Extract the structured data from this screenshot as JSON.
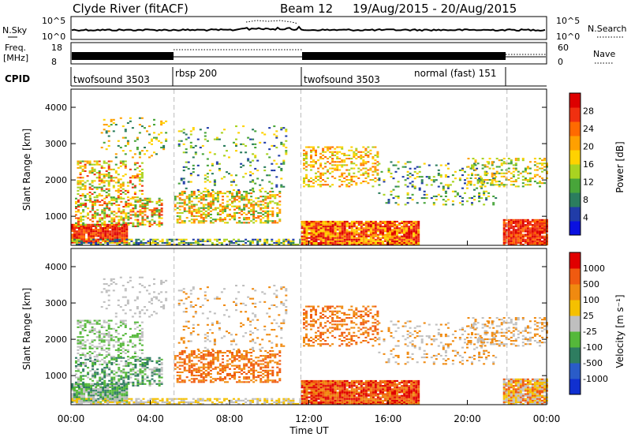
{
  "header": {
    "station": "Clyde River (fitACF)",
    "beam_label": "Beam 12",
    "dates": "19/Aug/2015 - 20/Aug/2015"
  },
  "top_panels": {
    "nsky_label": "N.Sky",
    "nsearch_label": "N.Search",
    "noise_ticks": [
      "10^5",
      "10^0"
    ],
    "freq_label_1": "Freq.",
    "freq_label_2": "[MHz]",
    "freq_ticks": [
      "18",
      "8"
    ],
    "nave_label": "Nave",
    "nave_ticks": [
      "60",
      "0"
    ],
    "cpid_label": "CPID",
    "cpid_segments": [
      {
        "name": "twofsound 3503",
        "start_h": 0,
        "end_h": 5.2
      },
      {
        "name": "rbsp 200",
        "start_h": 5.2,
        "end_h": 11.6
      },
      {
        "name": "twofsound 3503",
        "start_h": 11.6,
        "end_h": 17
      },
      {
        "name": "normal (fast) 151",
        "start_h": 17,
        "end_h": 22
      }
    ]
  },
  "time_axis": {
    "label": "Time UT",
    "ticks": [
      "00:00",
      "04:00",
      "08:00",
      "12:00",
      "16:00",
      "20:00",
      "00:00"
    ]
  },
  "chart_data": [
    {
      "type": "heatmap",
      "name": "power",
      "ylabel": "Slant Range [km]",
      "xlim_hours": [
        0,
        24
      ],
      "ylim_km": [
        200,
        4500
      ],
      "y_ticks": [
        1000,
        2000,
        3000,
        4000
      ],
      "x_ticks_hours": [
        0,
        4,
        8,
        12,
        16,
        20,
        24
      ],
      "scale_label": "Power [dB]",
      "scale_ticks": [
        "28",
        "24",
        "20",
        "16",
        "12",
        "8",
        "4"
      ],
      "scale_colors": [
        "#0a10e0",
        "#203ca8",
        "#2b7d5e",
        "#48a53a",
        "#a9d321",
        "#ffd200",
        "#ffa000",
        "#ff6a00",
        "#f03010",
        "#dd0000"
      ],
      "mode_changes_hours": [
        5.2,
        11.6,
        22
      ]
    },
    {
      "type": "heatmap",
      "name": "velocity",
      "ylabel": "Slant Range [km]",
      "xlim_hours": [
        0,
        24
      ],
      "ylim_km": [
        200,
        4500
      ],
      "y_ticks": [
        1000,
        2000,
        3000,
        4000
      ],
      "x_ticks_hours": [
        0,
        4,
        8,
        12,
        16,
        20,
        24
      ],
      "scale_label": "Velocity [m s⁻¹]",
      "scale_ticks": [
        "1000",
        "500",
        "100",
        "25",
        "-25",
        "-100",
        "-500",
        "-1000"
      ],
      "scale_colors": [
        "#1030d0",
        "#2a5cc8",
        "#2e7d60",
        "#55b83a",
        "#bfbfbf",
        "#f5c000",
        "#f08a10",
        "#f05a10",
        "#e00000"
      ],
      "mode_changes_hours": [
        5.2,
        11.6,
        22
      ]
    }
  ],
  "colors": {
    "ground": "#b8b8a8",
    "frame": "#000000"
  }
}
